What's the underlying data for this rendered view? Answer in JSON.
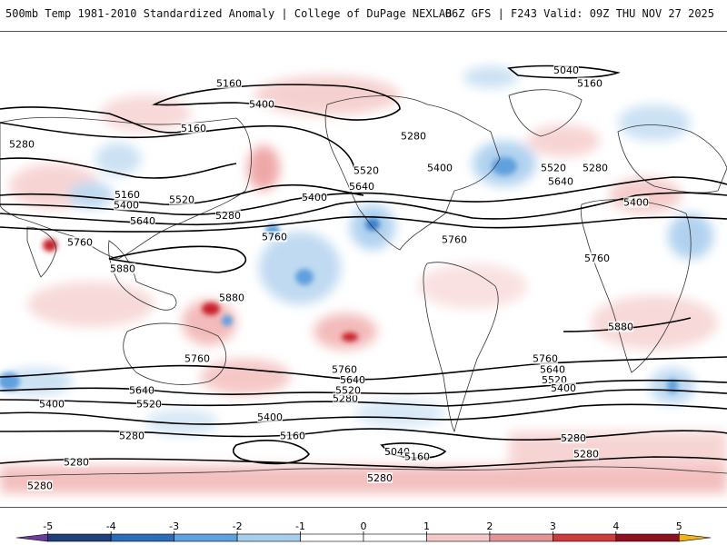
{
  "header": {
    "title": "500mb Temp 1981-2010 Standardized Anomaly | College of DuPage NEXLAB",
    "run_info": "06Z GFS | F243 Valid: 09Z THU NOV 27 2025"
  },
  "colors": {
    "background": "#ffffff",
    "contour": "#000000",
    "coastline": "#333333",
    "neg_strong": "#1f77c8",
    "neg_weak": "#b9d6f0",
    "pos_weak": "#f6c9c9",
    "pos_strong": "#c8202a"
  },
  "contour_labels": [
    {
      "text": "5160",
      "lon": 252,
      "lat": 70
    },
    {
      "text": "5400",
      "lon": 288,
      "lat": 62
    },
    {
      "text": "5160",
      "lon": 213,
      "lat": 53
    },
    {
      "text": "5280",
      "lon": 24,
      "lat": 47
    },
    {
      "text": "5160",
      "lon": 140,
      "lat": 28
    },
    {
      "text": "5400",
      "lon": 139,
      "lat": 24
    },
    {
      "text": "5640",
      "lon": 157,
      "lat": 18
    },
    {
      "text": "5520",
      "lon": 200,
      "lat": 26
    },
    {
      "text": "5280",
      "lon": 251,
      "lat": 20
    },
    {
      "text": "5400",
      "lon": 346,
      "lat": 27
    },
    {
      "text": "5520",
      "lon": 403,
      "lat": 37
    },
    {
      "text": "5640",
      "lon": 398,
      "lat": 31
    },
    {
      "text": "5280",
      "lon": 455,
      "lat": 50
    },
    {
      "text": "5400",
      "lon": 484,
      "lat": 38
    },
    {
      "text": "5040",
      "lon": 623,
      "lat": 75
    },
    {
      "text": "5160",
      "lon": 649,
      "lat": 70
    },
    {
      "text": "5520",
      "lon": 609,
      "lat": 38
    },
    {
      "text": "5640",
      "lon": 617,
      "lat": 33
    },
    {
      "text": "5280",
      "lon": 655,
      "lat": 38
    },
    {
      "text": "5400",
      "lon": 700,
      "lat": 25
    },
    {
      "text": "5760",
      "lon": 302,
      "lat": 12
    },
    {
      "text": "5760",
      "lon": 88,
      "lat": 10
    },
    {
      "text": "5880",
      "lon": 135,
      "lat": 0
    },
    {
      "text": "5880",
      "lon": 255,
      "lat": -11
    },
    {
      "text": "5760",
      "lon": 500,
      "lat": 11
    },
    {
      "text": "5760",
      "lon": 657,
      "lat": 4
    },
    {
      "text": "5880",
      "lon": 683,
      "lat": -22
    },
    {
      "text": "5760",
      "lon": 217,
      "lat": -34
    },
    {
      "text": "5760",
      "lon": 379,
      "lat": -38
    },
    {
      "text": "5640",
      "lon": 156,
      "lat": -46
    },
    {
      "text": "5520",
      "lon": 164,
      "lat": -51
    },
    {
      "text": "5400",
      "lon": 57,
      "lat": -51
    },
    {
      "text": "5400",
      "lon": 297,
      "lat": -56
    },
    {
      "text": "5280",
      "lon": 380,
      "lat": -49
    },
    {
      "text": "5520",
      "lon": 383,
      "lat": -46
    },
    {
      "text": "5640",
      "lon": 388,
      "lat": -42
    },
    {
      "text": "5760",
      "lon": 600,
      "lat": -34
    },
    {
      "text": "5640",
      "lon": 608,
      "lat": -38
    },
    {
      "text": "5520",
      "lon": 610,
      "lat": -42
    },
    {
      "text": "5400",
      "lon": 620,
      "lat": -45
    },
    {
      "text": "5280",
      "lon": 145,
      "lat": -63
    },
    {
      "text": "5160",
      "lon": 322,
      "lat": -63
    },
    {
      "text": "5040",
      "lon": 437,
      "lat": -69
    },
    {
      "text": "5160",
      "lon": 459,
      "lat": -71
    },
    {
      "text": "5280",
      "lon": 631,
      "lat": -64
    },
    {
      "text": "5280",
      "lon": 645,
      "lat": -70
    },
    {
      "text": "5280",
      "lon": 84,
      "lat": -73
    },
    {
      "text": "5280",
      "lon": 418,
      "lat": -79
    },
    {
      "text": "5280",
      "lon": 44,
      "lat": -82
    }
  ],
  "colorbar": {
    "ticks": [
      "-5",
      "-4",
      "-3",
      "-2",
      "-1",
      "0",
      "1",
      "2",
      "3",
      "4",
      "5"
    ],
    "min": -5.5,
    "max": 5.5,
    "bins": [
      {
        "from": -5.5,
        "to": -5,
        "color": "#6a3d9a"
      },
      {
        "from": -5,
        "to": -4,
        "color": "#1f3f7a"
      },
      {
        "from": -4,
        "to": -3,
        "color": "#2b6cb8"
      },
      {
        "from": -3,
        "to": -2,
        "color": "#5fa0de"
      },
      {
        "from": -2,
        "to": -1,
        "color": "#a9cdee"
      },
      {
        "from": -1,
        "to": 0,
        "color": "#ffffff"
      },
      {
        "from": 0,
        "to": 1,
        "color": "#ffffff"
      },
      {
        "from": 1,
        "to": 2,
        "color": "#f4caca"
      },
      {
        "from": 2,
        "to": 3,
        "color": "#e39494"
      },
      {
        "from": 3,
        "to": 4,
        "color": "#cc3b3b"
      },
      {
        "from": 4,
        "to": 5,
        "color": "#8e1020"
      },
      {
        "from": 5,
        "to": 5.5,
        "color": "#f2b21a"
      }
    ]
  }
}
